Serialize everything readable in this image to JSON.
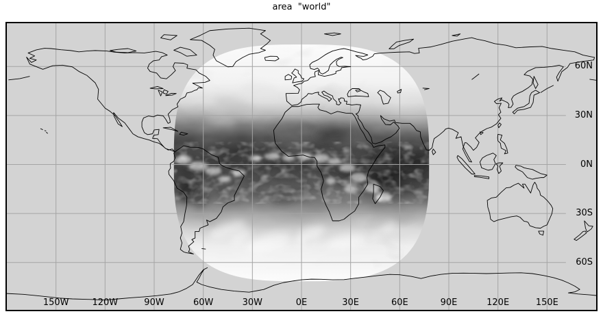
{
  "title": "area  \"world\"",
  "map": {
    "projection": "plate-carree",
    "lon_range": [
      -180,
      180
    ],
    "lat_range": [
      -88.5,
      86.5
    ],
    "grid_interval_deg": 30,
    "x_ticks": [
      {
        "lon": -150,
        "label": "150W"
      },
      {
        "lon": -120,
        "label": "120W"
      },
      {
        "lon": -90,
        "label": "90W"
      },
      {
        "lon": -60,
        "label": "60W"
      },
      {
        "lon": -30,
        "label": "30W"
      },
      {
        "lon": 0,
        "label": "0E"
      },
      {
        "lon": 30,
        "label": "30E"
      },
      {
        "lon": 60,
        "label": "60E"
      },
      {
        "lon": 90,
        "label": "90E"
      },
      {
        "lon": 120,
        "label": "120E"
      },
      {
        "lon": 150,
        "label": "150E"
      }
    ],
    "y_ticks": [
      {
        "lat": 60,
        "label": "60N"
      },
      {
        "lat": 30,
        "label": "30N"
      },
      {
        "lat": 0,
        "label": "0N"
      },
      {
        "lat": -30,
        "label": "30S"
      },
      {
        "lat": -60,
        "label": "60S"
      }
    ],
    "colors": {
      "page_bg": "#ffffff",
      "map_bg": "#d3d3d3",
      "grid": "#a4a4a4",
      "coastline": "#000000",
      "frame": "#000000",
      "text": "#000000"
    },
    "satellite_overlay": {
      "name": "geostationary-full-disk-cloud-image",
      "center_lon": 0,
      "center_lat": 1,
      "half_width_deg": 78,
      "half_height_deg": 72.5,
      "shape_exponent": 3.1,
      "tone_stops": [
        [
          73,
          "#fafafa"
        ],
        [
          50,
          "#f0f0f0"
        ],
        [
          38,
          "#d7d7d7"
        ],
        [
          30,
          "#a9a9a9"
        ],
        [
          24,
          "#6e6e6e"
        ],
        [
          17,
          "#3e3e3e"
        ],
        [
          9,
          "#232323"
        ],
        [
          0,
          "#1d1d1d"
        ],
        [
          -8,
          "#262626"
        ],
        [
          -15,
          "#373737"
        ],
        [
          -23,
          "#5e5e5e"
        ],
        [
          -31,
          "#9b9b9b"
        ],
        [
          -40,
          "#cccccc"
        ],
        [
          -50,
          "#ebebeb"
        ],
        [
          -71,
          "#fbfbfb"
        ]
      ]
    }
  }
}
